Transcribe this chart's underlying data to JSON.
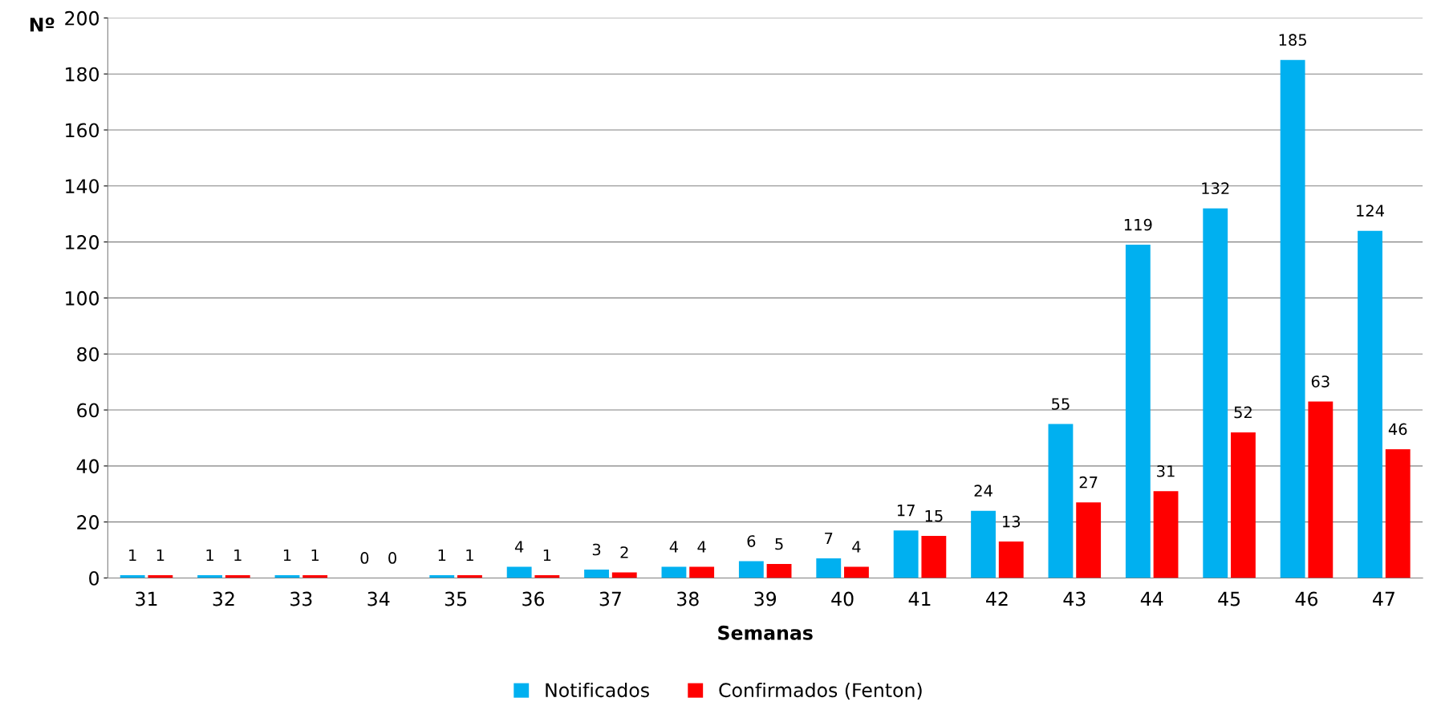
{
  "chart_data": {
    "type": "bar",
    "xlabel": "Semanas",
    "ylabel": "Nº",
    "categories": [
      "31",
      "32",
      "33",
      "34",
      "35",
      "36",
      "37",
      "38",
      "39",
      "40",
      "41",
      "42",
      "43",
      "44",
      "45",
      "46",
      "47"
    ],
    "series": [
      {
        "name": "Notificados",
        "color": "#00b0f0",
        "values": [
          1,
          1,
          1,
          0,
          1,
          4,
          3,
          4,
          6,
          7,
          17,
          24,
          55,
          119,
          132,
          185,
          124
        ]
      },
      {
        "name": "Confirmados (Fenton)",
        "color": "#ff0000",
        "values": [
          1,
          1,
          1,
          0,
          1,
          1,
          2,
          4,
          5,
          4,
          15,
          13,
          27,
          31,
          52,
          63,
          46
        ]
      }
    ],
    "ylim": [
      0,
      200
    ],
    "yticks": [
      0,
      20,
      40,
      60,
      80,
      100,
      120,
      140,
      160,
      180,
      200
    ],
    "grid": "y",
    "legend": "bottom",
    "data_labels": true
  }
}
